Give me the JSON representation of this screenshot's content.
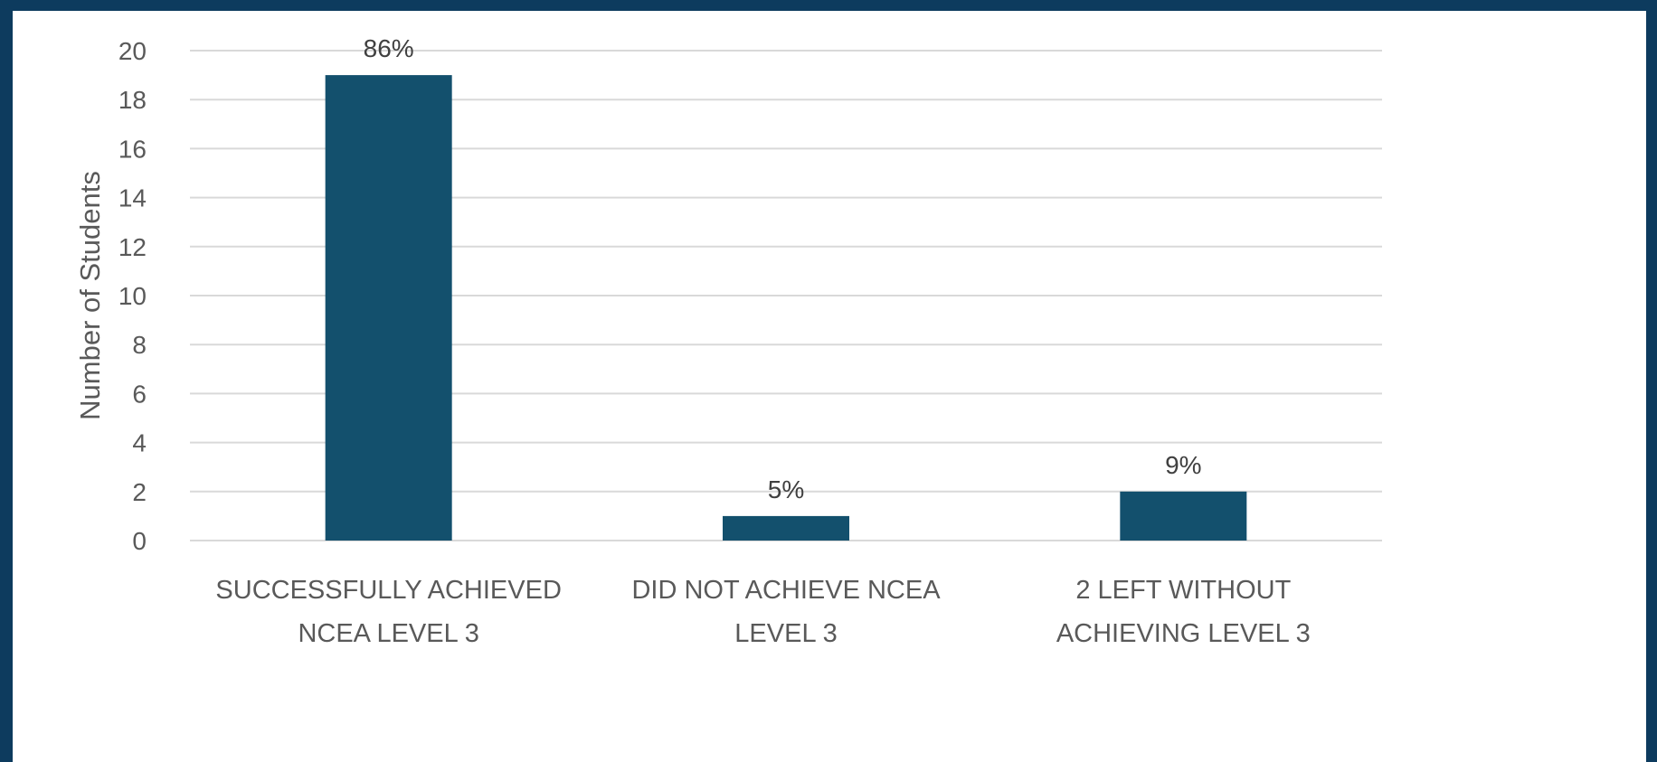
{
  "chart_data": {
    "type": "bar",
    "title": "",
    "xlabel": "",
    "ylabel": "Number of Students",
    "ylim": [
      0,
      20
    ],
    "yticks": [
      0,
      2,
      4,
      6,
      8,
      10,
      12,
      14,
      16,
      18,
      20
    ],
    "grid": true,
    "legend": "none",
    "categories": [
      [
        "SUCCESSFULLY ACHIEVED",
        "NCEA LEVEL 3"
      ],
      [
        "DID NOT ACHIEVE NCEA",
        "LEVEL 3"
      ],
      [
        "2 LEFT WITHOUT",
        "ACHIEVING LEVEL 3"
      ]
    ],
    "values": [
      19,
      1,
      2
    ],
    "data_labels": [
      "86%",
      "5%",
      "9%"
    ],
    "colors": {
      "bar": "#13506d",
      "grid": "#d9d9d9",
      "text": "#595959",
      "frame": "#0d3b5e"
    }
  }
}
